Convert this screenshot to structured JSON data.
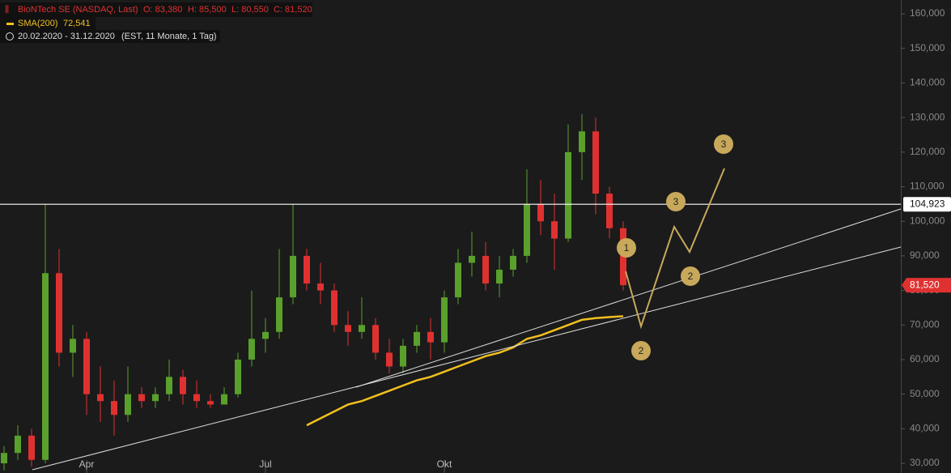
{
  "chart_data": {
    "type": "candlestick",
    "title": "BioNTech SE (NASDAQ, Last)",
    "ohlc_labels": [
      "O: 83,380",
      "H: 85,500",
      "L: 80,550",
      "C: 81,520"
    ],
    "sma_legend": {
      "name": "SMA(200)",
      "value_label": "72,541"
    },
    "period": "20.02.2020 - 31.12.2020",
    "period_note": "(EST, 11 Monate, 1 Tag)",
    "categories": [
      null,
      null,
      null,
      null,
      null,
      null,
      "Apr",
      null,
      null,
      null,
      null,
      null,
      null,
      null,
      null,
      null,
      null,
      null,
      null,
      "Jul",
      null,
      null,
      null,
      null,
      null,
      null,
      null,
      null,
      null,
      null,
      null,
      null,
      "Okt",
      null,
      null,
      null,
      null,
      null,
      null,
      null,
      null,
      null,
      null,
      null,
      null,
      null
    ],
    "open": [
      30000,
      33000,
      38000,
      31000,
      85000,
      62000,
      66000,
      50000,
      48000,
      44000,
      50000,
      48000,
      50000,
      55000,
      50000,
      48000,
      47000,
      50000,
      60000,
      66000,
      68000,
      78000,
      90000,
      82000,
      80000,
      70000,
      68000,
      70000,
      62000,
      58000,
      64000,
      68000,
      65000,
      78000,
      88000,
      90000,
      82000,
      86000,
      90000,
      105000,
      100000,
      95000,
      120000,
      126000,
      108000,
      98000
    ],
    "high": [
      35000,
      41000,
      40000,
      105000,
      92000,
      70000,
      68000,
      58000,
      54000,
      58000,
      52000,
      52000,
      60000,
      57000,
      54000,
      50000,
      52000,
      62000,
      80000,
      72000,
      92000,
      105000,
      92000,
      88000,
      82000,
      74000,
      78000,
      72000,
      66000,
      66000,
      70000,
      72000,
      80000,
      92000,
      97000,
      94000,
      90000,
      92000,
      115000,
      112000,
      108000,
      128000,
      131000,
      130000,
      110000,
      100000
    ],
    "low": [
      28000,
      31000,
      29000,
      30000,
      58000,
      55000,
      44000,
      42000,
      38000,
      42000,
      46000,
      46000,
      48000,
      47000,
      46000,
      46000,
      47000,
      49000,
      58000,
      62000,
      66000,
      76000,
      80000,
      76000,
      68000,
      64000,
      66000,
      60000,
      56000,
      56000,
      62000,
      60000,
      62000,
      76000,
      84000,
      80000,
      78000,
      84000,
      88000,
      96000,
      86000,
      94000,
      112000,
      102000,
      95000,
      80000
    ],
    "close": [
      33000,
      38000,
      31000,
      85000,
      62000,
      66000,
      50000,
      48000,
      44000,
      50000,
      48000,
      50000,
      55000,
      50000,
      48000,
      47000,
      50000,
      60000,
      66000,
      68000,
      78000,
      90000,
      82000,
      80000,
      70000,
      68000,
      70000,
      62000,
      58000,
      64000,
      68000,
      65000,
      78000,
      88000,
      90000,
      82000,
      86000,
      90000,
      105000,
      100000,
      95000,
      120000,
      126000,
      108000,
      98000,
      81520
    ],
    "sma": [
      null,
      null,
      null,
      null,
      null,
      null,
      null,
      null,
      null,
      null,
      null,
      null,
      null,
      null,
      null,
      null,
      null,
      null,
      null,
      null,
      null,
      null,
      41000,
      43000,
      45000,
      47000,
      48000,
      49500,
      51000,
      52500,
      54000,
      55000,
      56500,
      58000,
      59500,
      61000,
      62000,
      63500,
      66000,
      67000,
      68500,
      70000,
      71500,
      72000,
      72300,
      72541
    ],
    "up_color": "#5aa02c",
    "down_color": "#e03131",
    "sma_color": "#f2c01e",
    "ylim": [
      27200,
      164000
    ],
    "yticks": [
      {
        "value": 30000,
        "label": "30,000"
      },
      {
        "value": 40000,
        "label": "40,000"
      },
      {
        "value": 50000,
        "label": "50,000"
      },
      {
        "value": 60000,
        "label": "60,000"
      },
      {
        "value": 70000,
        "label": "70,000"
      },
      {
        "value": 80000,
        "label": "80,000"
      },
      {
        "value": 90000,
        "label": "90,000"
      },
      {
        "value": 100000,
        "label": "100,000"
      },
      {
        "value": 110000,
        "label": "110,000"
      },
      {
        "value": 120000,
        "label": "120,000"
      },
      {
        "value": 130000,
        "label": "130,000"
      },
      {
        "value": 140000,
        "label": "140,000"
      },
      {
        "value": 150000,
        "label": "150,000"
      },
      {
        "value": 160000,
        "label": "160,000"
      }
    ],
    "hline": {
      "value": 104923,
      "label": "104,923"
    },
    "last_price": {
      "value": 81520,
      "label": "81,520"
    },
    "annotations": [
      "1",
      "2",
      "3",
      "2",
      "3"
    ]
  }
}
